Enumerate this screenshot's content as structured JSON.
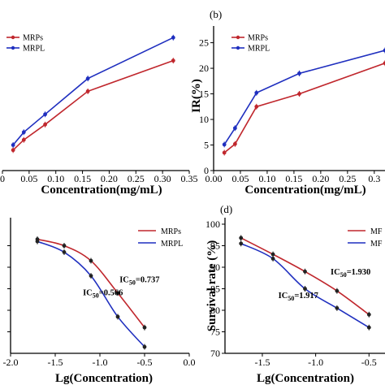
{
  "colors": {
    "red": "#c0272d",
    "blue": "#1f2fbf",
    "axis": "#000000"
  },
  "chart_data": [
    {
      "type": "line",
      "panel_label": "",
      "xlabel": "Concentration(mg/mL)",
      "ylabel": "",
      "xlim": [
        0,
        0.35
      ],
      "ylim": [
        0,
        27
      ],
      "x_ticks": [
        "0",
        "0.05",
        "0.10",
        "0.15",
        "0.20",
        "0.25",
        "0.30",
        "0.35"
      ],
      "x_tick_values": [
        0,
        0.05,
        0.1,
        0.15,
        0.2,
        0.25,
        0.3,
        0.35
      ],
      "legend": [
        "MRPs",
        "MRPL"
      ],
      "legend_position": "top-left",
      "series": [
        {
          "name": "MRPs",
          "color": "red",
          "x": [
            0.02,
            0.04,
            0.08,
            0.16,
            0.32
          ],
          "y": [
            4.0,
            6.0,
            9.0,
            15.5,
            21.5
          ]
        },
        {
          "name": "MRPL",
          "color": "blue",
          "x": [
            0.02,
            0.04,
            0.08,
            0.16,
            0.32
          ],
          "y": [
            5.0,
            7.5,
            11.0,
            18.0,
            26.0
          ]
        }
      ]
    },
    {
      "type": "line",
      "panel_label": "(b)",
      "xlabel": "Concentration(mg/mL)",
      "ylabel": "IR(%)",
      "xlim": [
        0,
        0.32
      ],
      "ylim": [
        0,
        27
      ],
      "x_ticks": [
        "0.00",
        "0.05",
        "0.10",
        "0.15",
        "0.20",
        "0.25",
        "0.3"
      ],
      "x_tick_values": [
        0,
        0.05,
        0.1,
        0.15,
        0.2,
        0.25,
        0.3
      ],
      "y_ticks": [
        "0",
        "5",
        "10",
        "15",
        "20",
        "25"
      ],
      "y_tick_values": [
        0,
        5,
        10,
        15,
        20,
        25
      ],
      "legend": [
        "MRPs",
        "MRPL"
      ],
      "legend_position": "top-left",
      "series": [
        {
          "name": "MRPs",
          "color": "red",
          "x": [
            0.02,
            0.04,
            0.08,
            0.16,
            0.32
          ],
          "y": [
            3.5,
            5.2,
            12.5,
            15.0,
            21.0
          ]
        },
        {
          "name": "MRPL",
          "color": "blue",
          "x": [
            0.02,
            0.04,
            0.08,
            0.16,
            0.32
          ],
          "y": [
            5.1,
            8.3,
            15.2,
            19.0,
            23.5
          ]
        }
      ]
    },
    {
      "type": "scatter",
      "panel_label": "",
      "xlabel": "Lg(Concentration)",
      "ylabel": "",
      "xlim": [
        -2.0,
        0
      ],
      "ylim": [
        70,
        100
      ],
      "x_ticks": [
        "-2.0",
        "-1.5",
        "-1.0",
        "-0.5",
        "0.0"
      ],
      "x_tick_values": [
        -2.0,
        -1.5,
        -1.0,
        -0.5,
        0.0
      ],
      "legend": [
        "MRPs",
        "MRPL"
      ],
      "legend_position": "top-right",
      "annotations": [
        {
          "text_prefix": "IC",
          "text_sub": "50",
          "text_suffix": "=0.737",
          "x": -0.78,
          "y": 86.5
        },
        {
          "text_prefix": "IC",
          "text_sub": "50",
          "text_suffix": "=0.566",
          "x": -1.19,
          "y": 83.5
        }
      ],
      "series": [
        {
          "name": "MRPs",
          "color": "red",
          "x": [
            -1.7,
            -1.4,
            -1.1,
            -0.8,
            -0.5
          ],
          "y": [
            96.5,
            95.0,
            91.5,
            84.0,
            76.0
          ]
        },
        {
          "name": "MRPL",
          "color": "blue",
          "x": [
            -1.7,
            -1.4,
            -1.1,
            -0.8,
            -0.5
          ],
          "y": [
            96.0,
            93.5,
            88.0,
            78.5,
            71.5
          ]
        }
      ]
    },
    {
      "type": "scatter",
      "panel_label": "(d)",
      "xlabel": "Lg(Concentration)",
      "ylabel": "Survival rate (%)",
      "xlim": [
        -1.85,
        -0.35
      ],
      "ylim": [
        70,
        100
      ],
      "x_ticks": [
        "-1.5",
        "-1.0",
        "-0.5"
      ],
      "x_tick_values": [
        -1.5,
        -1.0,
        -0.5
      ],
      "y_ticks": [
        "70",
        "75",
        "80",
        "85",
        "90",
        "95",
        "100"
      ],
      "y_tick_values": [
        70,
        75,
        80,
        85,
        90,
        95,
        100
      ],
      "legend": [
        "MF",
        "MF"
      ],
      "legend_position": "top-right",
      "annotations": [
        {
          "text_prefix": "IC",
          "text_sub": "50",
          "text_suffix": "=1.930",
          "x": -0.86,
          "y": 88.3
        },
        {
          "text_prefix": "IC",
          "text_sub": "50",
          "text_suffix": "=1.917",
          "x": -1.35,
          "y": 82.8
        }
      ],
      "series": [
        {
          "name": "MRPs",
          "color": "red",
          "x": [
            -1.7,
            -1.4,
            -1.1,
            -0.8,
            -0.5
          ],
          "y": [
            96.8,
            93.0,
            89.0,
            84.5,
            79.0
          ]
        },
        {
          "name": "MRPL",
          "color": "blue",
          "x": [
            -1.7,
            -1.4,
            -1.1,
            -0.8,
            -0.5
          ],
          "y": [
            95.5,
            92.0,
            85.0,
            80.5,
            76.0
          ]
        }
      ]
    }
  ]
}
